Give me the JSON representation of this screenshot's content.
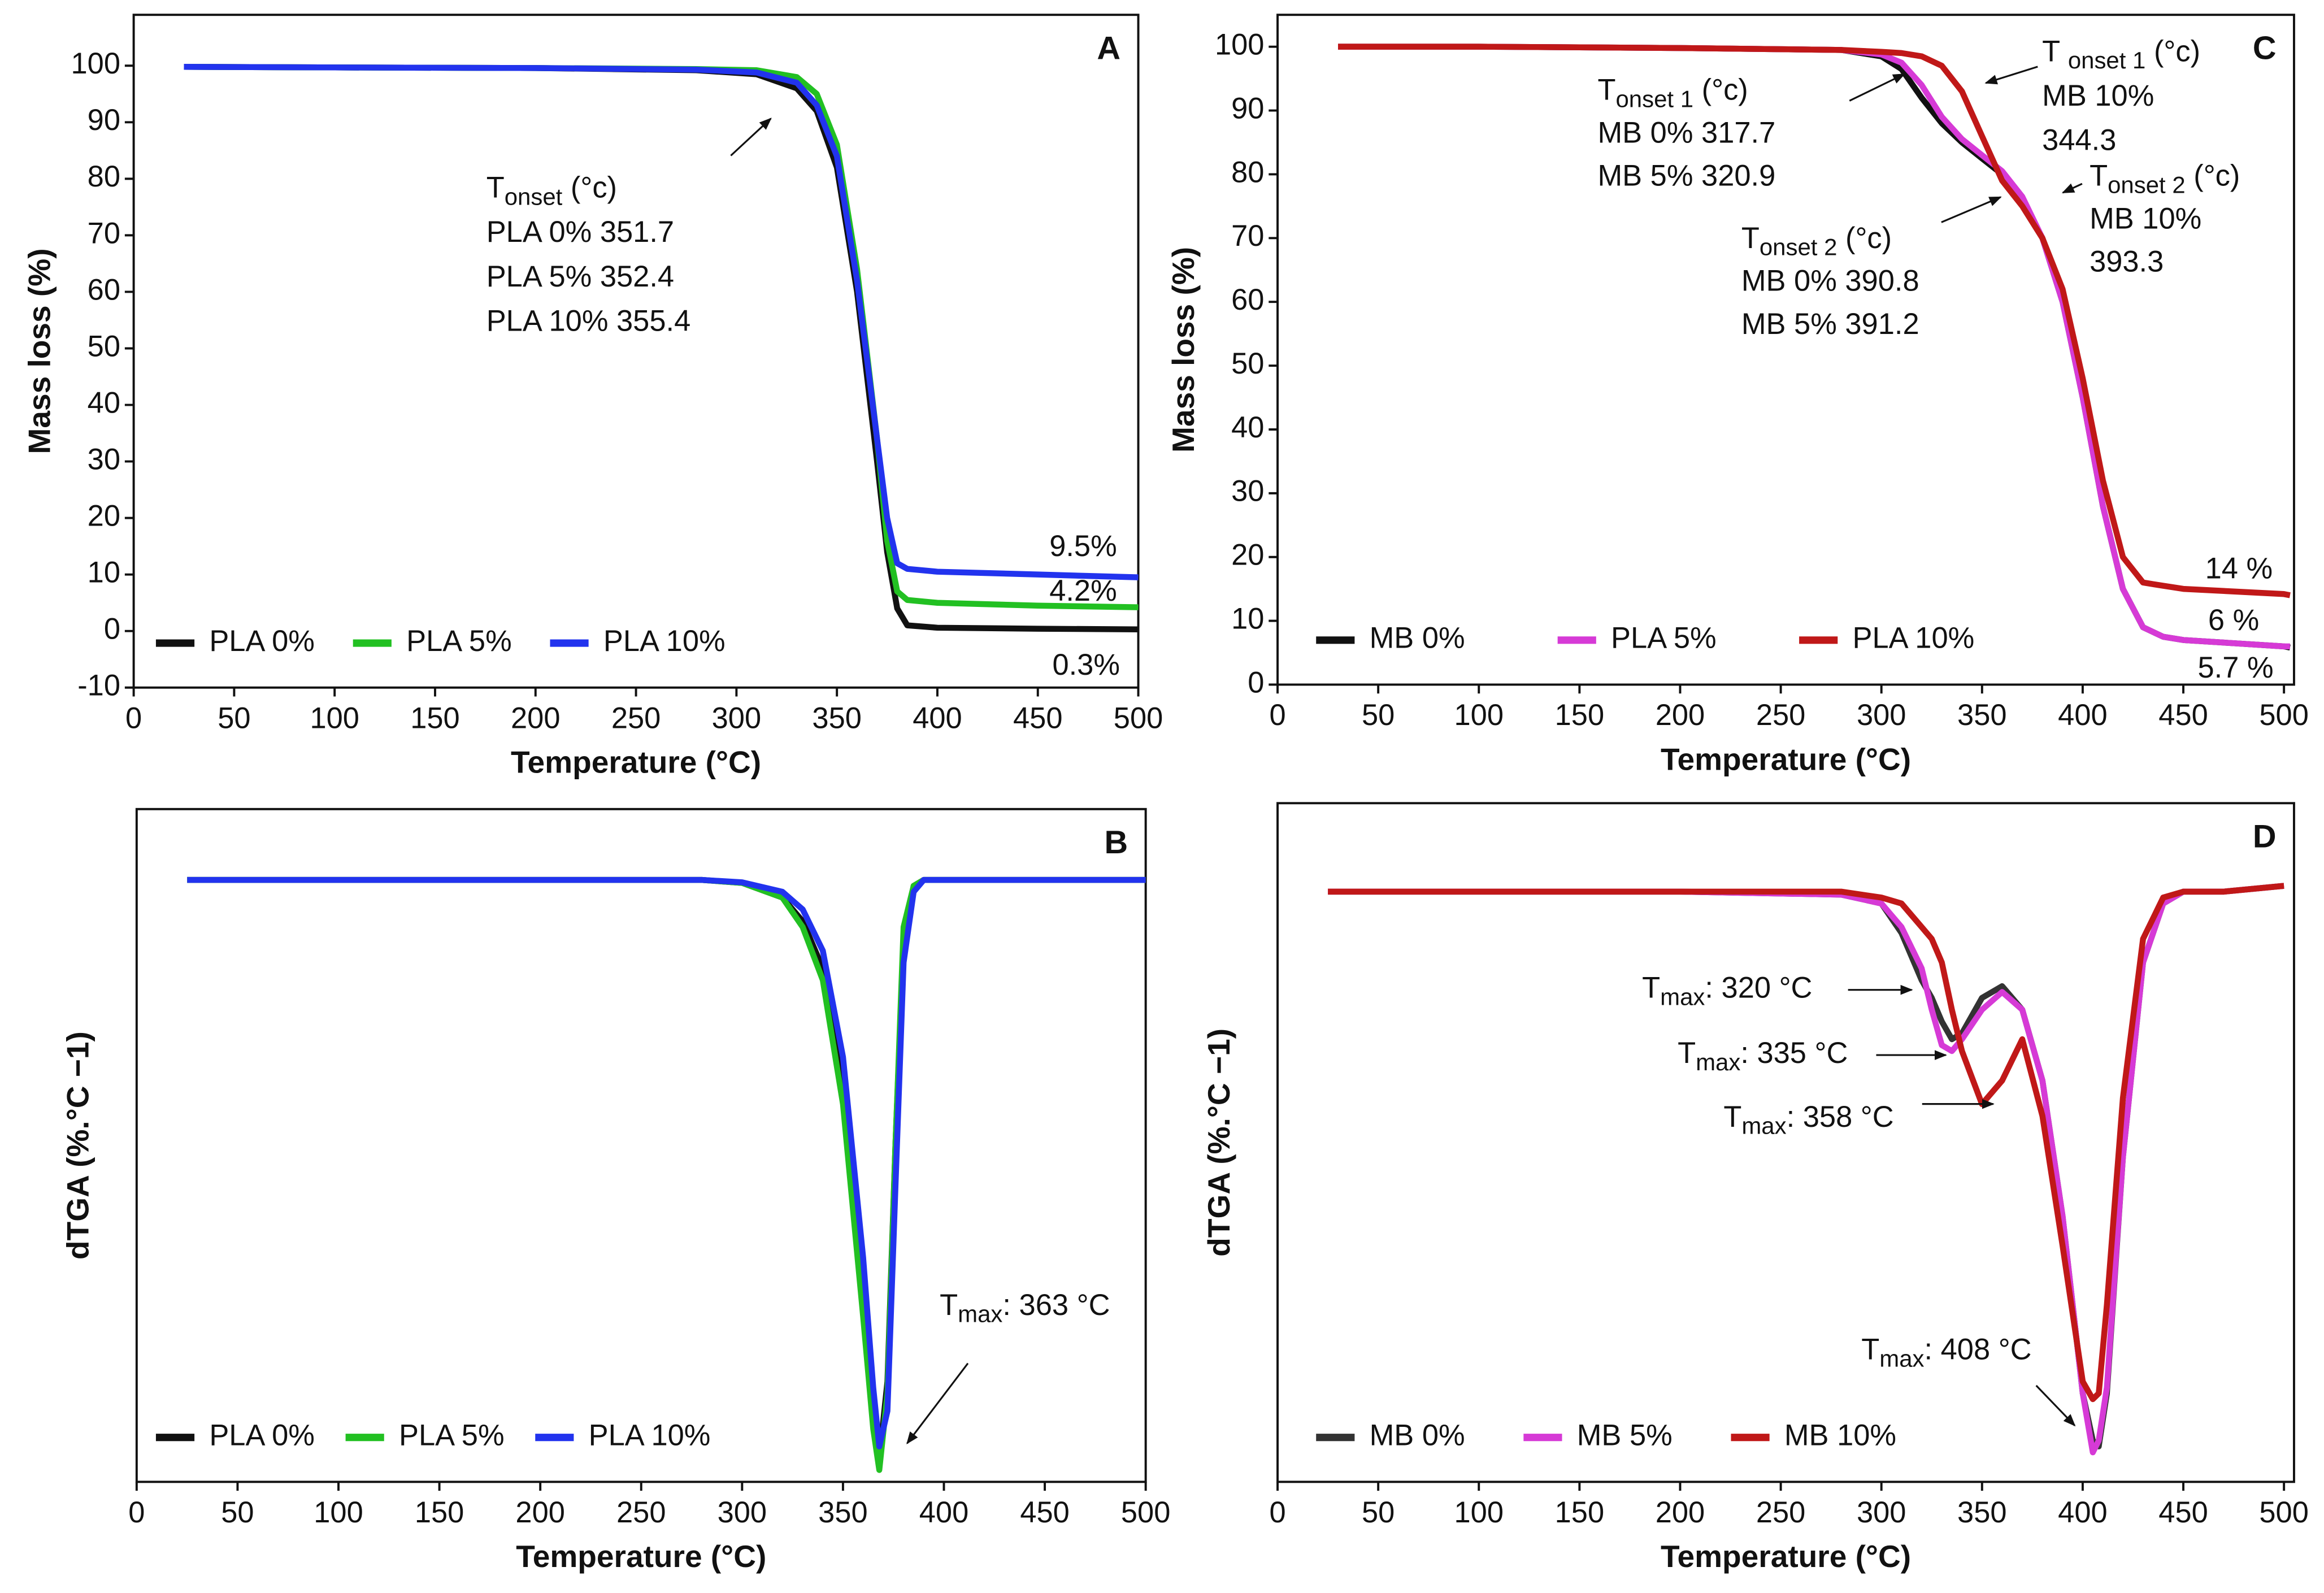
{
  "chart_data": [
    {
      "type": "line",
      "panel_label": "A",
      "xlabel": "Temperature (°C)",
      "ylabel": "Mass loss (%)",
      "xlim": [
        0,
        500
      ],
      "ylim": [
        -10,
        109
      ],
      "xticks": [
        0,
        50,
        100,
        150,
        200,
        250,
        300,
        350,
        400,
        450,
        500
      ],
      "yticks": [
        -10,
        0,
        10,
        20,
        30,
        40,
        50,
        60,
        70,
        80,
        90,
        100
      ],
      "legend": "lower left",
      "x": [
        25,
        100,
        200,
        280,
        310,
        330,
        340,
        350,
        360,
        370,
        375,
        380,
        385,
        400,
        450,
        500
      ],
      "series": [
        {
          "name": "PLA 0%",
          "color": "#111111",
          "values": [
            99.8,
            99.7,
            99.6,
            99.2,
            98.5,
            96,
            92,
            82,
            60,
            30,
            14,
            4,
            1,
            0.6,
            0.4,
            0.3
          ]
        },
        {
          "name": "PLA 5%",
          "color": "#22c022",
          "values": [
            99.8,
            99.7,
            99.6,
            99.4,
            99.2,
            98,
            95,
            86,
            64,
            34,
            16,
            7,
            5.5,
            5,
            4.5,
            4.2
          ]
        },
        {
          "name": "PLA 10%",
          "color": "#2233ee",
          "values": [
            99.8,
            99.7,
            99.6,
            99.3,
            98.8,
            97,
            93,
            84,
            62,
            34,
            20,
            12,
            11,
            10.5,
            10,
            9.5
          ]
        }
      ],
      "annotations": [
        {
          "lines": [
            {
              "text": "T",
              "sub": "onset",
              "after": " (°c)"
            },
            "PLA 0% 351.7",
            "PLA 5% 352.4",
            "PLA 10% 355.4"
          ]
        },
        {
          "lines": [
            "9.5%"
          ]
        },
        {
          "lines": [
            "4.2%"
          ]
        },
        {
          "lines": [
            "0.3%"
          ]
        }
      ]
    },
    {
      "type": "line",
      "panel_label": "B",
      "xlabel": "Temperature (°C)",
      "ylabel": "dTGA (%.°C −1)",
      "xlim": [
        0,
        500
      ],
      "ylim": [
        -1.02,
        0.12
      ],
      "xticks": [
        0,
        50,
        100,
        150,
        200,
        250,
        300,
        350,
        400,
        450,
        500
      ],
      "legend": "lower left",
      "x": [
        25,
        100,
        200,
        280,
        300,
        320,
        330,
        340,
        350,
        360,
        365,
        368,
        372,
        376,
        380,
        385,
        390,
        450,
        500
      ],
      "series": [
        {
          "name": "PLA 0%",
          "color": "#111111",
          "values": [
            0,
            0,
            0,
            0,
            -0.005,
            -0.03,
            -0.07,
            -0.15,
            -0.35,
            -0.7,
            -0.9,
            -0.98,
            -0.85,
            -0.45,
            -0.1,
            -0.01,
            0,
            0,
            0
          ]
        },
        {
          "name": "PLA 5%",
          "color": "#22c022",
          "values": [
            0,
            0,
            0,
            0,
            -0.005,
            -0.03,
            -0.08,
            -0.17,
            -0.38,
            -0.74,
            -0.93,
            -1.0,
            -0.87,
            -0.45,
            -0.08,
            -0.01,
            0,
            0,
            0
          ]
        },
        {
          "name": "PLA 10%",
          "color": "#2233ee",
          "values": [
            0,
            0,
            0,
            0,
            -0.004,
            -0.02,
            -0.05,
            -0.12,
            -0.3,
            -0.64,
            -0.86,
            -0.96,
            -0.9,
            -0.52,
            -0.14,
            -0.02,
            0,
            0,
            0
          ]
        }
      ],
      "annotations": [
        {
          "lines": [
            {
              "text": "T",
              "sub": "max",
              "after": ": 363 °C"
            }
          ]
        }
      ]
    },
    {
      "type": "line",
      "panel_label": "C",
      "xlabel": "Temperature (°C)",
      "ylabel": "Mass loss (%)",
      "xlim": [
        0,
        505
      ],
      "ylim": [
        0,
        105
      ],
      "xticks": [
        0,
        50,
        100,
        150,
        200,
        250,
        300,
        350,
        400,
        450,
        500
      ],
      "yticks": [
        0,
        10,
        20,
        30,
        40,
        50,
        60,
        70,
        80,
        90,
        100
      ],
      "legend": "lower left",
      "x": [
        30,
        100,
        200,
        280,
        300,
        310,
        320,
        330,
        340,
        350,
        360,
        370,
        380,
        390,
        400,
        410,
        420,
        430,
        440,
        450,
        500,
        503
      ],
      "series": [
        {
          "name": "MB 0%",
          "color": "#111111",
          "values": [
            100,
            100,
            99.8,
            99.5,
            98.5,
            96.5,
            92,
            88,
            85,
            82.5,
            80,
            76,
            70,
            60,
            45,
            28,
            15,
            9,
            7.5,
            7,
            6,
            5.8
          ]
        },
        {
          "name": "PLA 5%",
          "color": "#d63ad6",
          "values": [
            100,
            100,
            99.8,
            99.5,
            98.8,
            97.5,
            94,
            89,
            85.5,
            83,
            80.5,
            76.5,
            70,
            60,
            45,
            28,
            15,
            9,
            7.5,
            7,
            6,
            6
          ]
        },
        {
          "name": "PLA 10%",
          "color": "#c01818",
          "values": [
            100,
            100,
            99.8,
            99.5,
            99.2,
            99,
            98.5,
            97,
            93,
            86,
            79,
            75,
            70,
            62,
            48,
            32,
            20,
            16,
            15.5,
            15,
            14.2,
            14
          ]
        }
      ],
      "annotations": [
        {
          "lines": [
            {
              "text": "T",
              "sub": "onset 1",
              "after": " (°c)"
            },
            "MB 0% 317.7",
            "MB 5% 320.9"
          ]
        },
        {
          "lines": [
            {
              "text": "T ",
              "sub": "onset 1",
              "after": " (°c)"
            },
            "MB 10%",
            "344.3"
          ]
        },
        {
          "lines": [
            {
              "text": "T",
              "sub": "onset 2",
              "after": " (°c)"
            },
            "MB 10%",
            "393.3"
          ]
        },
        {
          "lines": [
            {
              "text": "T",
              "sub": "onset 2",
              "after": " (°c)"
            },
            "MB 0% 390.8",
            "MB 5% 391.2"
          ]
        },
        {
          "lines": [
            "14 %"
          ]
        },
        {
          "lines": [
            "6 %"
          ]
        },
        {
          "lines": [
            "5.7 %"
          ]
        }
      ]
    },
    {
      "type": "line",
      "panel_label": "D",
      "xlabel": "Temperature (°C)",
      "ylabel": "dTGA (%.°C −1)",
      "xlim": [
        0,
        505
      ],
      "ylim": [
        -1,
        0.15
      ],
      "xticks": [
        0,
        50,
        100,
        150,
        200,
        250,
        300,
        350,
        400,
        450,
        500
      ],
      "legend": "lower left",
      "x": [
        25,
        100,
        200,
        280,
        300,
        310,
        320,
        325,
        330,
        335,
        340,
        350,
        360,
        370,
        380,
        390,
        400,
        405,
        408,
        412,
        420,
        430,
        440,
        450,
        470,
        500
      ],
      "series": [
        {
          "name": "MB 0%",
          "color": "#333333",
          "values": [
            0,
            0,
            0,
            -0.005,
            -0.02,
            -0.07,
            -0.15,
            -0.18,
            -0.22,
            -0.25,
            -0.24,
            -0.18,
            -0.16,
            -0.2,
            -0.32,
            -0.55,
            -0.85,
            -0.93,
            -0.94,
            -0.85,
            -0.45,
            -0.12,
            -0.02,
            0,
            0,
            0.01
          ]
        },
        {
          "name": "MB 5%",
          "color": "#d63ad6",
          "values": [
            0,
            0,
            0,
            -0.005,
            -0.02,
            -0.06,
            -0.13,
            -0.2,
            -0.26,
            -0.27,
            -0.25,
            -0.2,
            -0.17,
            -0.2,
            -0.32,
            -0.55,
            -0.85,
            -0.95,
            -0.93,
            -0.84,
            -0.45,
            -0.12,
            -0.02,
            0,
            0,
            0.01
          ]
        },
        {
          "name": "MB 10%",
          "color": "#c01818",
          "values": [
            0,
            0,
            0,
            0,
            -0.01,
            -0.02,
            -0.06,
            -0.08,
            -0.12,
            -0.2,
            -0.27,
            -0.36,
            -0.32,
            -0.25,
            -0.38,
            -0.6,
            -0.83,
            -0.86,
            -0.85,
            -0.7,
            -0.35,
            -0.08,
            -0.01,
            0,
            0,
            0.01
          ]
        }
      ],
      "annotations": [
        {
          "lines": [
            {
              "text": "T",
              "sub": "max",
              "after": ": 320 °C"
            }
          ]
        },
        {
          "lines": [
            {
              "text": "T",
              "sub": "max",
              "after": ": 335 °C"
            }
          ]
        },
        {
          "lines": [
            {
              "text": "T",
              "sub": "max",
              "after": ": 358 °C"
            }
          ]
        },
        {
          "lines": [
            {
              "text": "T",
              "sub": "max",
              "after": ": 408 °C"
            }
          ]
        }
      ]
    }
  ]
}
